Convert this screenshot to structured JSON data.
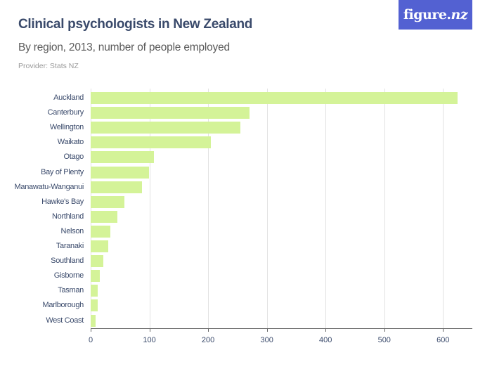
{
  "header": {
    "title": "Clinical psychologists in New Zealand",
    "subtitle": "By region, 2013, number of people employed",
    "provider": "Provider: Stats NZ"
  },
  "logo": {
    "text_main": "figure.",
    "text_nz": "nz",
    "bg_color": "#5361d2"
  },
  "chart_data": {
    "type": "bar",
    "orientation": "horizontal",
    "title": "Clinical psychologists in New Zealand",
    "subtitle": "By region, 2013, number of people employed",
    "xlabel": "",
    "ylabel": "",
    "categories": [
      "Auckland",
      "Canterbury",
      "Wellington",
      "Waikato",
      "Otago",
      "Bay of Plenty",
      "Manawatu-Wanganui",
      "Hawke's Bay",
      "Northland",
      "Nelson",
      "Taranaki",
      "Southland",
      "Gisborne",
      "Tasman",
      "Marlborough",
      "West Coast"
    ],
    "values": [
      625,
      271,
      255,
      205,
      108,
      99,
      87,
      57,
      45,
      33,
      30,
      21,
      15,
      12,
      12,
      8
    ],
    "xlim": [
      0,
      650
    ],
    "xticks": [
      "0",
      "100",
      "200",
      "300",
      "400",
      "500",
      "600"
    ],
    "grid": true,
    "legend": null,
    "bar_color": "#d4f398"
  }
}
